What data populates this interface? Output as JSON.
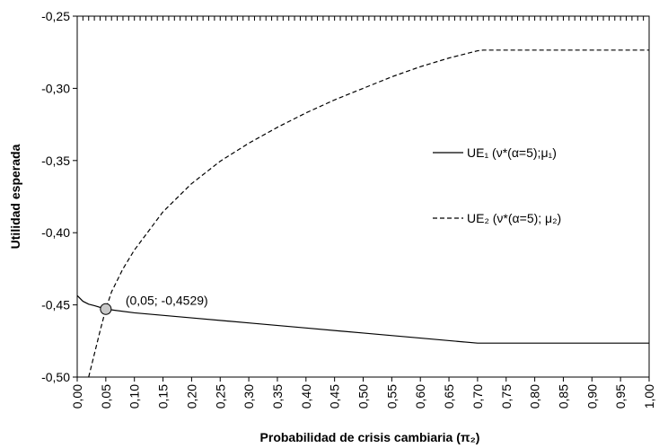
{
  "chart_data": {
    "type": "line",
    "title": "",
    "xlabel": "Probabilidad de crisis cambiaria (π₂)",
    "ylabel": "Utilidad esperada",
    "xlim": [
      0.0,
      1.0
    ],
    "ylim": [
      -0.5,
      -0.25
    ],
    "x_ticks": [
      "0,00",
      "0,05",
      "0,10",
      "0,15",
      "0,20",
      "0,25",
      "0,30",
      "0,35",
      "0,40",
      "0,45",
      "0,50",
      "0,55",
      "0,60",
      "0,65",
      "0,70",
      "0,75",
      "0,80",
      "0,85",
      "0,90",
      "0,95",
      "1,00"
    ],
    "y_ticks": [
      "-0,50",
      "-0,45",
      "-0,40",
      "-0,35",
      "-0,30",
      "-0,25"
    ],
    "grid": false,
    "legend_position": "right",
    "series": [
      {
        "name": "UE₁ (ν*(α=5);μ₁)",
        "style": "solid",
        "color": "#000000",
        "x": [
          0.0,
          0.01,
          0.02,
          0.03,
          0.05,
          0.1,
          0.2,
          0.3,
          0.4,
          0.5,
          0.6,
          0.7,
          0.71,
          0.8,
          0.9,
          1.0
        ],
        "y": [
          -0.4435,
          -0.4475,
          -0.4495,
          -0.4505,
          -0.4529,
          -0.4555,
          -0.459,
          -0.4625,
          -0.466,
          -0.4695,
          -0.473,
          -0.4765,
          -0.4765,
          -0.4765,
          -0.4765,
          -0.4765
        ]
      },
      {
        "name": "UE₂ (ν*(α=5); μ₂)",
        "style": "dashed",
        "color": "#000000",
        "x": [
          0.02,
          0.03,
          0.04,
          0.05,
          0.06,
          0.08,
          0.1,
          0.15,
          0.2,
          0.25,
          0.3,
          0.35,
          0.4,
          0.45,
          0.5,
          0.55,
          0.6,
          0.65,
          0.7,
          0.71,
          0.8,
          0.9,
          1.0
        ],
        "y": [
          -0.5,
          -0.484,
          -0.468,
          -0.4529,
          -0.441,
          -0.425,
          -0.412,
          -0.3855,
          -0.366,
          -0.3505,
          -0.338,
          -0.327,
          -0.317,
          -0.308,
          -0.3,
          -0.292,
          -0.285,
          -0.279,
          -0.274,
          -0.2735,
          -0.2735,
          -0.2735,
          -0.2735
        ]
      }
    ],
    "annotations": [
      {
        "text": "(0,05; -0,4529)",
        "x": 0.05,
        "y": -0.4529,
        "marker": "circle",
        "marker_color": "#c8c8c8"
      }
    ]
  }
}
